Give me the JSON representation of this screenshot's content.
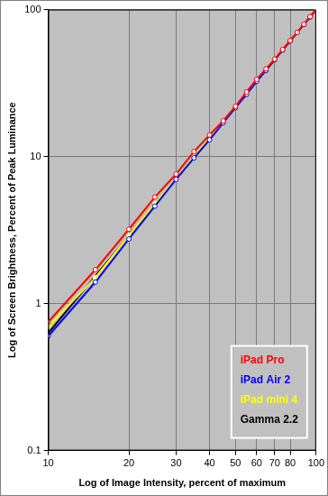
{
  "chart_data": {
    "type": "line",
    "x_label": "Log of Image Intensity, percent of maximum",
    "y_label": "Log of Screen Brightness, Percent of Peak Luminance",
    "x": [
      10,
      15,
      20,
      25,
      30,
      35,
      40,
      45,
      50,
      55,
      60,
      65,
      70,
      75,
      80,
      85,
      90,
      95,
      100
    ],
    "series": [
      {
        "name": "iPad Pro",
        "color": "#ff0000",
        "marker": "circle",
        "values": [
          0.75,
          1.7,
          3.2,
          5.3,
          7.6,
          10.8,
          14,
          17.5,
          22,
          27.5,
          33.5,
          39.5,
          46,
          53.5,
          61.5,
          70,
          79.5,
          89.5,
          100
        ]
      },
      {
        "name": "iPad Air 2",
        "color": "#0000ff",
        "marker": "circle",
        "values": [
          0.6,
          1.4,
          2.75,
          4.6,
          7.0,
          9.8,
          13,
          17,
          21.5,
          26.5,
          32.5,
          38.5,
          45.5,
          53,
          61,
          70,
          79,
          89,
          100
        ]
      },
      {
        "name": "iPad mini 4",
        "color": "#ffff00",
        "marker": "circle",
        "values": [
          0.7,
          1.5,
          2.9,
          4.8,
          7.1,
          10,
          13.5,
          17.3,
          22,
          27,
          33,
          39,
          45.8,
          53.2,
          61.2,
          70,
          79.3,
          89.3,
          100
        ]
      },
      {
        "name": "Gamma 2.2",
        "color": "#000000",
        "marker": "none",
        "values": [
          0.63,
          1.54,
          2.89,
          4.77,
          7.07,
          9.94,
          13.3,
          17.3,
          21.8,
          26.8,
          32.5,
          38.8,
          45.6,
          53.1,
          61.2,
          69.9,
          79.3,
          89.3,
          100
        ]
      }
    ],
    "xlim": [
      10,
      100
    ],
    "ylim": [
      0.1,
      100
    ],
    "xticks": [
      10,
      20,
      30,
      40,
      50,
      60,
      70,
      80,
      100
    ],
    "yticks": [
      0.1,
      1,
      10,
      100
    ],
    "log": true,
    "grid": true,
    "legend": "bottom right"
  }
}
